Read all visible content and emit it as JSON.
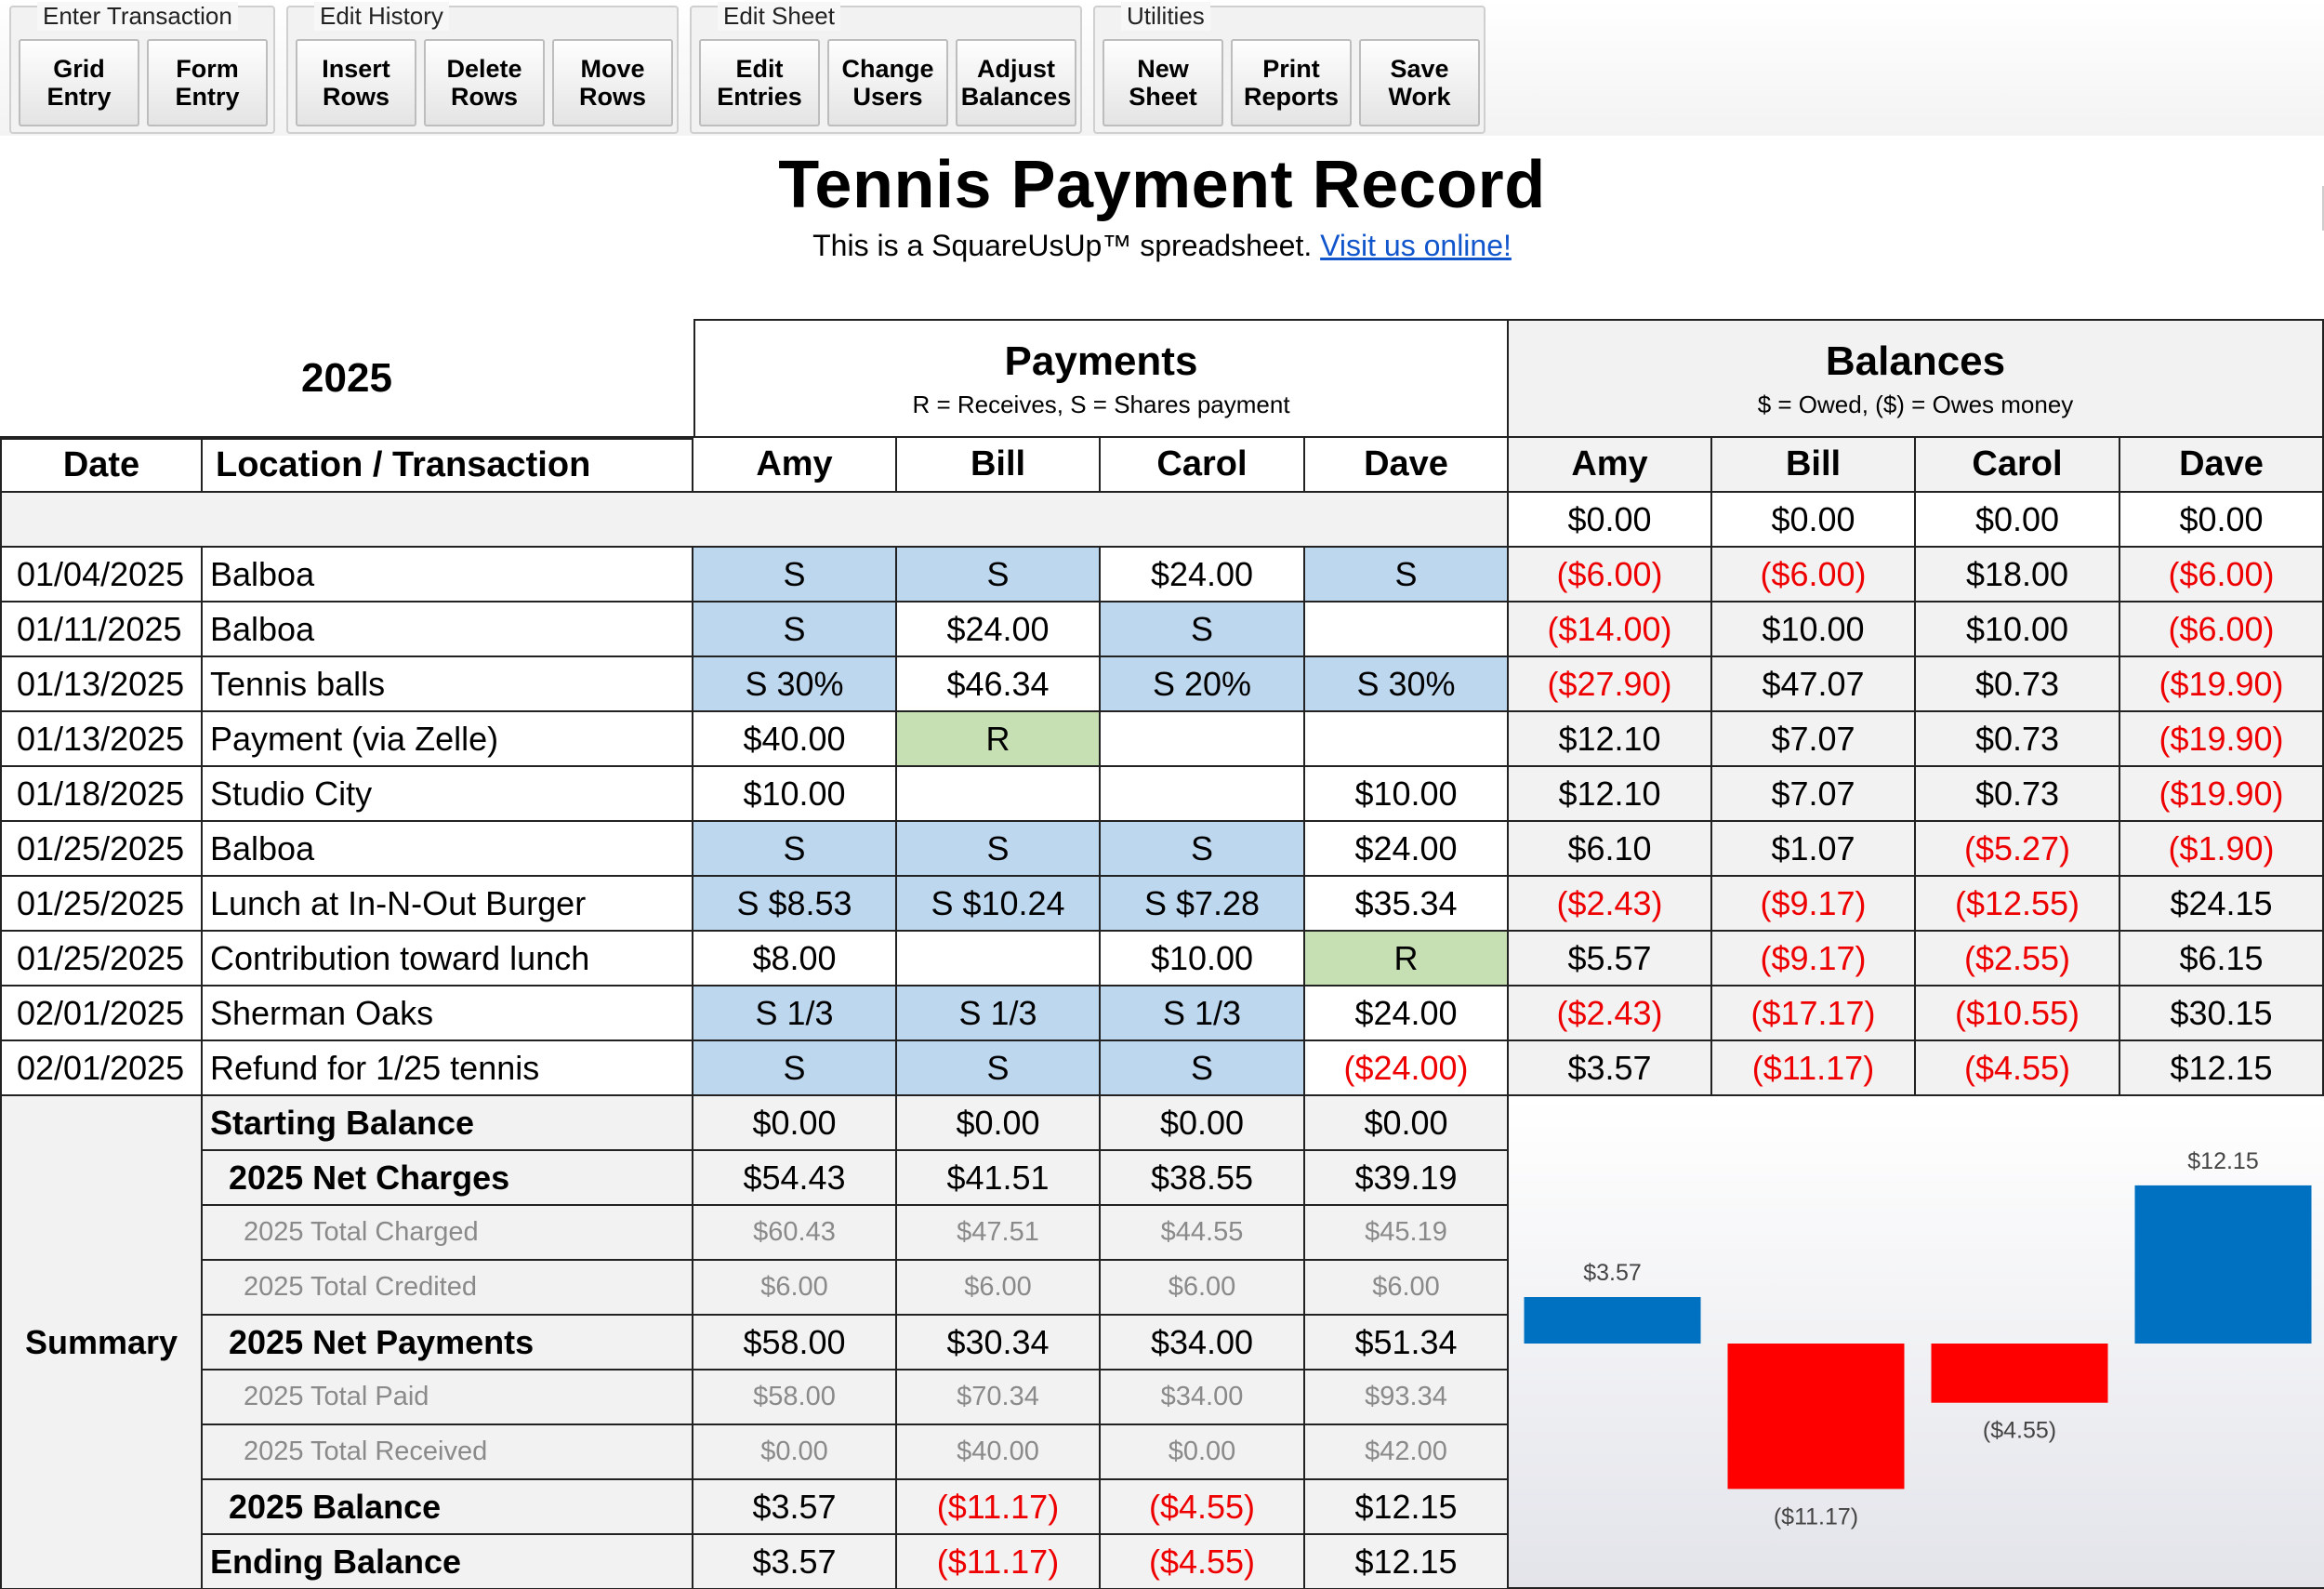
{
  "toolbar": {
    "groups": [
      {
        "label": "Enter Transaction",
        "buttons": [
          "Grid\nEntry",
          "Form\nEntry"
        ]
      },
      {
        "label": "Edit History",
        "buttons": [
          "Insert\nRows",
          "Delete\nRows",
          "Move\nRows"
        ]
      },
      {
        "label": "Edit Sheet",
        "buttons": [
          "Edit\nEntries",
          "Change\nUsers",
          "Adjust\nBalances"
        ]
      },
      {
        "label": "Utilities",
        "buttons": [
          "New\nSheet",
          "Print\nReports",
          "Save\nWork"
        ]
      }
    ]
  },
  "header": {
    "title": "Tennis Payment Record",
    "subtitle": "This is a SquareUsUp™ spreadsheet.",
    "link": "Visit us online!"
  },
  "sheet": {
    "year": "2025",
    "payments_title": "Payments",
    "payments_sub": "R = Receives, S = Shares payment",
    "balances_title": "Balances",
    "balances_sub": "$ = Owed, ($) = Owes money",
    "col_date": "Date",
    "col_location": "Location / Transaction",
    "users": [
      "Amy",
      "Bill",
      "Carol",
      "Dave"
    ],
    "opening_balances": [
      "$0.00",
      "$0.00",
      "$0.00",
      "$0.00"
    ],
    "rows": [
      {
        "date": "01/04/2025",
        "loc": "Balboa",
        "pay": [
          {
            "t": "S",
            "s": "b"
          },
          {
            "t": "S",
            "s": "b"
          },
          {
            "t": "$24.00",
            "s": ""
          },
          {
            "t": "S",
            "s": "b"
          }
        ],
        "bal": [
          "($6.00)",
          "($6.00)",
          "$18.00",
          "($6.00)"
        ]
      },
      {
        "date": "01/11/2025",
        "loc": "Balboa",
        "pay": [
          {
            "t": "S",
            "s": "b"
          },
          {
            "t": "$24.00",
            "s": ""
          },
          {
            "t": "S",
            "s": "b"
          },
          {
            "t": "",
            "s": ""
          }
        ],
        "bal": [
          "($14.00)",
          "$10.00",
          "$10.00",
          "($6.00)"
        ]
      },
      {
        "date": "01/13/2025",
        "loc": "Tennis balls",
        "pay": [
          {
            "t": "S 30%",
            "s": "b"
          },
          {
            "t": "$46.34",
            "s": ""
          },
          {
            "t": "S 20%",
            "s": "b"
          },
          {
            "t": "S 30%",
            "s": "b"
          }
        ],
        "bal": [
          "($27.90)",
          "$47.07",
          "$0.73",
          "($19.90)"
        ]
      },
      {
        "date": "01/13/2025",
        "loc": "Payment (via Zelle)",
        "pay": [
          {
            "t": "$40.00",
            "s": ""
          },
          {
            "t": "R",
            "s": "g"
          },
          {
            "t": "",
            "s": ""
          },
          {
            "t": "",
            "s": ""
          }
        ],
        "bal": [
          "$12.10",
          "$7.07",
          "$0.73",
          "($19.90)"
        ]
      },
      {
        "date": "01/18/2025",
        "loc": "Studio City",
        "pay": [
          {
            "t": "$10.00",
            "s": ""
          },
          {
            "t": "",
            "s": ""
          },
          {
            "t": "",
            "s": ""
          },
          {
            "t": "$10.00",
            "s": ""
          }
        ],
        "bal": [
          "$12.10",
          "$7.07",
          "$0.73",
          "($19.90)"
        ]
      },
      {
        "date": "01/25/2025",
        "loc": "Balboa",
        "pay": [
          {
            "t": "S",
            "s": "b"
          },
          {
            "t": "S",
            "s": "b"
          },
          {
            "t": "S",
            "s": "b"
          },
          {
            "t": "$24.00",
            "s": ""
          }
        ],
        "bal": [
          "$6.10",
          "$1.07",
          "($5.27)",
          "($1.90)"
        ]
      },
      {
        "date": "01/25/2025",
        "loc": "Lunch at In-N-Out Burger",
        "pay": [
          {
            "t": "S $8.53",
            "s": "b"
          },
          {
            "t": "S $10.24",
            "s": "b"
          },
          {
            "t": "S $7.28",
            "s": "b"
          },
          {
            "t": "$35.34",
            "s": ""
          }
        ],
        "bal": [
          "($2.43)",
          "($9.17)",
          "($12.55)",
          "$24.15"
        ]
      },
      {
        "date": "01/25/2025",
        "loc": "Contribution toward lunch",
        "pay": [
          {
            "t": "$8.00",
            "s": ""
          },
          {
            "t": "",
            "s": ""
          },
          {
            "t": "$10.00",
            "s": ""
          },
          {
            "t": "R",
            "s": "g"
          }
        ],
        "bal": [
          "$5.57",
          "($9.17)",
          "($2.55)",
          "$6.15"
        ]
      },
      {
        "date": "02/01/2025",
        "loc": "Sherman Oaks",
        "pay": [
          {
            "t": "S 1/3",
            "s": "b"
          },
          {
            "t": "S 1/3",
            "s": "b"
          },
          {
            "t": "S 1/3",
            "s": "b"
          },
          {
            "t": "$24.00",
            "s": ""
          }
        ],
        "bal": [
          "($2.43)",
          "($17.17)",
          "($10.55)",
          "$30.15"
        ]
      },
      {
        "date": "02/01/2025",
        "loc": "Refund for 1/25 tennis",
        "pay": [
          {
            "t": "S",
            "s": "b"
          },
          {
            "t": "S",
            "s": "b"
          },
          {
            "t": "S",
            "s": "b"
          },
          {
            "t": "($24.00)",
            "s": ""
          }
        ],
        "bal": [
          "$3.57",
          "($11.17)",
          "($4.55)",
          "$12.15"
        ]
      }
    ],
    "summary_label": "Summary",
    "summary": [
      {
        "label": "Starting Balance",
        "style": "main",
        "vals": [
          "$0.00",
          "$0.00",
          "$0.00",
          "$0.00"
        ]
      },
      {
        "label": "2025 Net Charges",
        "style": "sub",
        "vals": [
          "$54.43",
          "$41.51",
          "$38.55",
          "$39.19"
        ]
      },
      {
        "label": "2025 Total Charged",
        "style": "muted",
        "vals": [
          "$60.43",
          "$47.51",
          "$44.55",
          "$45.19"
        ]
      },
      {
        "label": "2025 Total Credited",
        "style": "muted",
        "vals": [
          "$6.00",
          "$6.00",
          "$6.00",
          "$6.00"
        ]
      },
      {
        "label": "2025 Net Payments",
        "style": "sub",
        "vals": [
          "$58.00",
          "$30.34",
          "$34.00",
          "$51.34"
        ]
      },
      {
        "label": "2025 Total Paid",
        "style": "muted",
        "vals": [
          "$58.00",
          "$70.34",
          "$34.00",
          "$93.34"
        ]
      },
      {
        "label": "2025 Total Received",
        "style": "muted",
        "vals": [
          "$0.00",
          "$40.00",
          "$0.00",
          "$42.00"
        ]
      },
      {
        "label": "2025 Balance",
        "style": "sub",
        "vals": [
          "$3.57",
          "($11.17)",
          "($4.55)",
          "$12.15"
        ]
      },
      {
        "label": "Ending Balance",
        "style": "main",
        "vals": [
          "$3.57",
          "($11.17)",
          "($4.55)",
          "$12.15"
        ]
      }
    ]
  },
  "chart_data": {
    "type": "bar",
    "categories": [
      "Amy",
      "Bill",
      "Carol",
      "Dave"
    ],
    "values": [
      3.57,
      -11.17,
      -4.55,
      12.15
    ],
    "labels": [
      "$3.57",
      "($11.17)",
      "($4.55)",
      "$12.15"
    ],
    "colors": {
      "positive": "#0070c0",
      "negative": "#ff0000"
    }
  },
  "colors": {
    "shares": "#bdd7ee",
    "receives": "#c6e0b4",
    "negative_text": "#ee0000",
    "link": "#1155cc"
  }
}
